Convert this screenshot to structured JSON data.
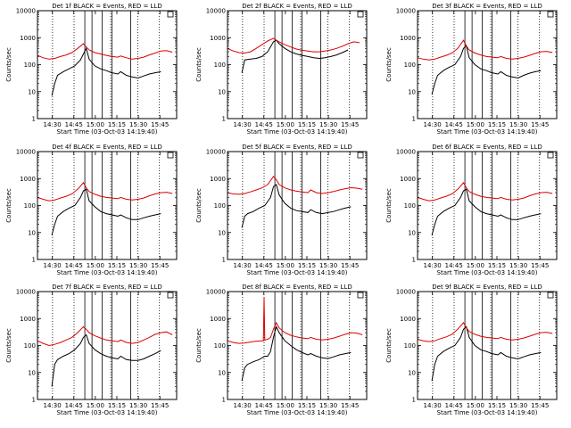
{
  "chart_data": {
    "type": "line",
    "common": {
      "xlabel": "Start Time (03-Oct-03 14:19:40)",
      "ylabel": "Counts/sec",
      "x_ticks": [
        "14:30",
        "14:45",
        "15:00",
        "15:15",
        "15:30",
        "15:45"
      ],
      "y_ticks": [
        "1",
        "10",
        "100",
        "1000",
        "10000"
      ],
      "yscale": "log",
      "ylim": [
        1,
        10000
      ],
      "xlim_minutes_after_start": [
        0,
        97
      ],
      "series_colors": {
        "Events": "#000000",
        "LLD": "#dd0000"
      }
    },
    "panels": [
      {
        "title": "Det 1f BLACK = Events, RED = LLD",
        "series": [
          {
            "name": "Events",
            "x": [
              10,
              12,
              14,
              18,
              22,
              26,
              30,
              32,
              34,
              36,
              40,
              44,
              48,
              52,
              56,
              58,
              62,
              66,
              70,
              74,
              78,
              82,
              86
            ],
            "y": [
              7,
              20,
              40,
              55,
              70,
              90,
              150,
              250,
              400,
              160,
              90,
              70,
              60,
              50,
              45,
              55,
              40,
              35,
              32,
              38,
              45,
              50,
              55
            ]
          },
          {
            "name": "LLD",
            "x": [
              0,
              4,
              8,
              12,
              16,
              20,
              24,
              28,
              32,
              34,
              36,
              40,
              44,
              48,
              52,
              56,
              58,
              62,
              66,
              70,
              74,
              78,
              82,
              86,
              90,
              94
            ],
            "y": [
              220,
              180,
              160,
              170,
              200,
              230,
              280,
              400,
              600,
              450,
              350,
              280,
              250,
              220,
              200,
              190,
              210,
              180,
              160,
              170,
              190,
              230,
              270,
              320,
              330,
              290
            ]
          }
        ]
      },
      {
        "title": "Det 2f BLACK = Events, RED = LLD",
        "series": [
          {
            "name": "Events",
            "x": [
              10,
              12,
              16,
              20,
              24,
              28,
              32,
              34,
              36,
              40,
              44,
              48,
              52,
              56,
              60,
              64,
              68,
              72,
              76,
              80,
              84
            ],
            "y": [
              50,
              150,
              160,
              170,
              200,
              300,
              700,
              800,
              600,
              400,
              300,
              250,
              220,
              200,
              180,
              170,
              180,
              200,
              230,
              280,
              350
            ]
          },
          {
            "name": "LLD",
            "x": [
              0,
              4,
              8,
              12,
              16,
              20,
              24,
              28,
              32,
              34,
              36,
              40,
              44,
              48,
              52,
              56,
              60,
              64,
              68,
              72,
              76,
              80,
              84,
              88,
              92
            ],
            "y": [
              400,
              320,
              280,
              270,
              300,
              400,
              550,
              750,
              950,
              800,
              700,
              550,
              450,
              380,
              340,
              320,
              300,
              300,
              320,
              350,
              400,
              480,
              600,
              700,
              650
            ]
          }
        ]
      },
      {
        "title": "Det 3f BLACK = Events, RED = LLD",
        "series": [
          {
            "name": "Events",
            "x": [
              10,
              12,
              14,
              18,
              22,
              26,
              30,
              32,
              34,
              36,
              40,
              44,
              48,
              52,
              56,
              58,
              62,
              66,
              70,
              74,
              78,
              82,
              86
            ],
            "y": [
              8,
              20,
              40,
              60,
              80,
              100,
              200,
              400,
              500,
              180,
              100,
              70,
              60,
              50,
              45,
              55,
              40,
              35,
              32,
              40,
              48,
              55,
              60
            ]
          },
          {
            "name": "LLD",
            "x": [
              0,
              4,
              8,
              12,
              16,
              20,
              24,
              28,
              32,
              34,
              36,
              40,
              44,
              48,
              52,
              56,
              58,
              62,
              66,
              70,
              74,
              78,
              82,
              86,
              90,
              94
            ],
            "y": [
              180,
              160,
              150,
              160,
              190,
              220,
              270,
              400,
              800,
              500,
              350,
              270,
              230,
              200,
              190,
              180,
              200,
              170,
              160,
              170,
              190,
              220,
              260,
              300,
              310,
              280
            ]
          }
        ]
      },
      {
        "title": "Det 4f BLACK = Events, RED = LLD",
        "series": [
          {
            "name": "Events",
            "x": [
              10,
              12,
              14,
              18,
              22,
              26,
              30,
              32,
              34,
              36,
              40,
              44,
              48,
              52,
              56,
              58,
              62,
              66,
              70,
              74,
              78,
              82,
              86
            ],
            "y": [
              8,
              20,
              40,
              60,
              80,
              100,
              200,
              350,
              400,
              150,
              90,
              60,
              50,
              45,
              40,
              45,
              35,
              30,
              30,
              35,
              40,
              45,
              50
            ]
          },
          {
            "name": "LLD",
            "x": [
              0,
              4,
              8,
              12,
              16,
              20,
              24,
              28,
              32,
              34,
              36,
              40,
              44,
              48,
              52,
              56,
              58,
              62,
              66,
              70,
              74,
              78,
              82,
              86,
              90,
              94
            ],
            "y": [
              200,
              170,
              150,
              160,
              190,
              220,
              270,
              400,
              700,
              450,
              330,
              260,
              220,
              200,
              190,
              180,
              200,
              170,
              160,
              170,
              190,
              230,
              270,
              300,
              310,
              280
            ]
          }
        ]
      },
      {
        "title": "Det 5f BLACK = Events, RED = LLD",
        "series": [
          {
            "name": "Events",
            "x": [
              10,
              12,
              14,
              18,
              22,
              26,
              30,
              32,
              34,
              36,
              40,
              44,
              48,
              52,
              56,
              58,
              62,
              66,
              70,
              74,
              78,
              82,
              86
            ],
            "y": [
              15,
              40,
              50,
              60,
              80,
              100,
              200,
              500,
              600,
              250,
              120,
              80,
              65,
              60,
              55,
              70,
              55,
              50,
              55,
              60,
              70,
              80,
              90
            ]
          },
          {
            "name": "LLD",
            "x": [
              0,
              4,
              8,
              12,
              16,
              20,
              24,
              28,
              32,
              34,
              36,
              40,
              44,
              48,
              52,
              56,
              58,
              62,
              66,
              70,
              74,
              78,
              82,
              86,
              90,
              94
            ],
            "y": [
              300,
              270,
              260,
              280,
              320,
              380,
              450,
              600,
              1200,
              900,
              600,
              450,
              380,
              340,
              320,
              300,
              380,
              300,
              280,
              300,
              330,
              380,
              420,
              460,
              440,
              400
            ]
          }
        ]
      },
      {
        "title": "Det 6f BLACK = Events, RED = LLD",
        "series": [
          {
            "name": "Events",
            "x": [
              10,
              12,
              14,
              18,
              22,
              26,
              30,
              32,
              34,
              36,
              40,
              44,
              48,
              52,
              56,
              58,
              62,
              66,
              70,
              74,
              78,
              82,
              86
            ],
            "y": [
              8,
              20,
              40,
              60,
              80,
              100,
              200,
              350,
              400,
              150,
              90,
              60,
              50,
              45,
              40,
              45,
              35,
              30,
              30,
              35,
              40,
              45,
              50
            ]
          },
          {
            "name": "LLD",
            "x": [
              0,
              4,
              8,
              12,
              16,
              20,
              24,
              28,
              32,
              34,
              36,
              40,
              44,
              48,
              52,
              56,
              58,
              62,
              66,
              70,
              74,
              78,
              82,
              86,
              90,
              94
            ],
            "y": [
              200,
              170,
              150,
              160,
              190,
              220,
              270,
              400,
              700,
              450,
              330,
              260,
              220,
              200,
              190,
              180,
              200,
              170,
              160,
              170,
              190,
              230,
              270,
              300,
              310,
              280
            ]
          }
        ]
      },
      {
        "title": "Det 7f BLACK = Events, RED = LLD",
        "series": [
          {
            "name": "Events",
            "x": [
              10,
              12,
              14,
              18,
              22,
              26,
              30,
              32,
              34,
              36,
              40,
              44,
              48,
              52,
              56,
              58,
              62,
              66,
              70,
              74,
              78,
              82,
              86
            ],
            "y": [
              3,
              20,
              30,
              40,
              50,
              70,
              120,
              200,
              250,
              120,
              70,
              50,
              40,
              35,
              32,
              40,
              30,
              28,
              28,
              32,
              40,
              50,
              65
            ]
          },
          {
            "name": "LLD",
            "x": [
              0,
              4,
              8,
              12,
              16,
              20,
              24,
              28,
              32,
              34,
              36,
              40,
              44,
              48,
              52,
              56,
              58,
              62,
              66,
              70,
              74,
              78,
              82,
              86,
              90,
              94
            ],
            "y": [
              150,
              120,
              100,
              110,
              130,
              160,
              200,
              300,
              500,
              400,
              300,
              230,
              190,
              160,
              150,
              140,
              160,
              130,
              120,
              130,
              160,
              200,
              260,
              300,
              320,
              250
            ]
          }
        ]
      },
      {
        "title": "Det 8f BLACK = Events, RED = LLD",
        "series": [
          {
            "name": "Events",
            "x": [
              10,
              12,
              14,
              18,
              22,
              26,
              28,
              30,
              32,
              34,
              36,
              40,
              44,
              48,
              52,
              56,
              58,
              62,
              66,
              70,
              74,
              78,
              82,
              86
            ],
            "y": [
              5,
              15,
              20,
              25,
              30,
              40,
              40,
              60,
              200,
              500,
              300,
              150,
              100,
              70,
              55,
              45,
              50,
              40,
              35,
              33,
              38,
              45,
              50,
              55
            ]
          },
          {
            "name": "LLD",
            "x": [
              0,
              4,
              8,
              12,
              16,
              20,
              24,
              25,
              25.5,
              26,
              28,
              30,
              32,
              34,
              36,
              40,
              44,
              48,
              52,
              56,
              58,
              62,
              66,
              70,
              74,
              78,
              82,
              86,
              90,
              94
            ],
            "y": [
              150,
              130,
              120,
              125,
              135,
              145,
              150,
              150,
              6000,
              160,
              170,
              200,
              400,
              700,
              450,
              300,
              240,
              210,
              190,
              180,
              200,
              170,
              160,
              170,
              190,
              220,
              260,
              300,
              290,
              250
            ]
          }
        ]
      },
      {
        "title": "Det 9f BLACK = Events, RED = LLD",
        "series": [
          {
            "name": "Events",
            "x": [
              10,
              12,
              14,
              18,
              22,
              26,
              30,
              32,
              34,
              36,
              40,
              44,
              48,
              52,
              56,
              58,
              62,
              66,
              70,
              74,
              78,
              82,
              86
            ],
            "y": [
              5,
              20,
              40,
              60,
              80,
              100,
              200,
              400,
              500,
              200,
              100,
              70,
              60,
              50,
              45,
              55,
              40,
              35,
              32,
              38,
              45,
              50,
              55
            ]
          },
          {
            "name": "LLD",
            "x": [
              0,
              4,
              8,
              12,
              16,
              20,
              24,
              28,
              32,
              34,
              36,
              40,
              44,
              48,
              52,
              56,
              58,
              62,
              66,
              70,
              74,
              78,
              82,
              86,
              90,
              94
            ],
            "y": [
              170,
              150,
              140,
              150,
              180,
              210,
              260,
              400,
              700,
              450,
              330,
              260,
              220,
              200,
              190,
              180,
              200,
              170,
              160,
              170,
              190,
              220,
              260,
              300,
              310,
              280
            ]
          }
        ]
      }
    ]
  }
}
